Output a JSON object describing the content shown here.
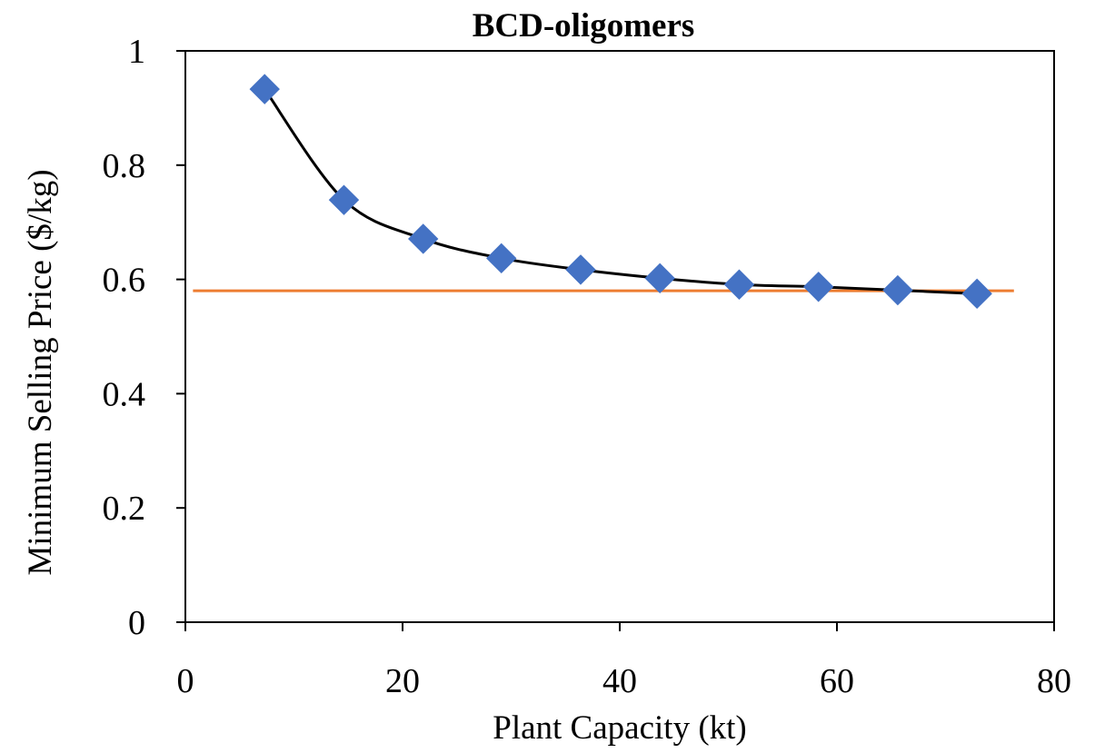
{
  "chart_data": {
    "type": "scatter",
    "title": "BCD-oligomers",
    "xlabel": "Plant Capacity (kt)",
    "ylabel": "Minimum Selling Price ($/kg)",
    "xlim": [
      0,
      80
    ],
    "ylim": [
      0,
      1
    ],
    "x_ticks": [
      0,
      20,
      40,
      60,
      80
    ],
    "x_tick_labels": [
      "0",
      "20",
      "40",
      "60",
      "80"
    ],
    "y_ticks": [
      0,
      0.2,
      0.4,
      0.6,
      0.8,
      1
    ],
    "y_tick_labels": [
      "0",
      "0.2",
      "0.4",
      "0.6",
      "0.8",
      "1"
    ],
    "grid": false,
    "series": [
      {
        "marker": "diamond",
        "line": "smooth",
        "marker_color": "#4472C4",
        "line_color": "#000000",
        "points": [
          {
            "x": 7.3,
            "y": 0.933
          },
          {
            "x": 14.6,
            "y": 0.739
          },
          {
            "x": 21.9,
            "y": 0.671
          },
          {
            "x": 29.1,
            "y": 0.637
          },
          {
            "x": 36.4,
            "y": 0.617
          },
          {
            "x": 43.7,
            "y": 0.602
          },
          {
            "x": 51.0,
            "y": 0.591
          },
          {
            "x": 58.3,
            "y": 0.587
          },
          {
            "x": 65.6,
            "y": 0.581
          },
          {
            "x": 72.9,
            "y": 0.575
          }
        ]
      },
      {
        "type": "reference-line",
        "color": "#ED7D31",
        "x_start": 0.7,
        "x_end": 76.3,
        "y": 0.58
      }
    ]
  }
}
